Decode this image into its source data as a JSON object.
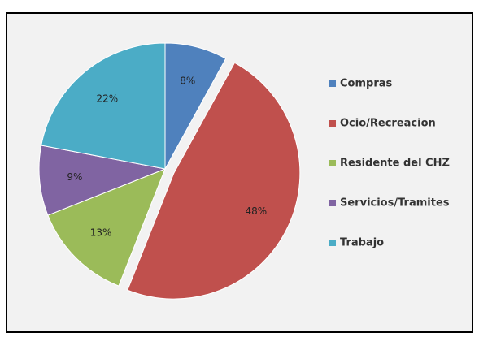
{
  "chart_data": {
    "type": "pie",
    "categories": [
      "Compras",
      "Ocio/Recreacion",
      "Residente del CHZ",
      "Servicios/Tramites",
      "Trabajo"
    ],
    "values": [
      8,
      48,
      13,
      9,
      22
    ],
    "value_labels": [
      "8%",
      "48%",
      "13%",
      "9%",
      "22%"
    ],
    "colors": [
      "#4f81bd",
      "#c0504d",
      "#9bbb59",
      "#8064a2",
      "#4bacc6"
    ],
    "exploded": [
      false,
      true,
      false,
      false,
      false
    ],
    "legend": "right"
  }
}
